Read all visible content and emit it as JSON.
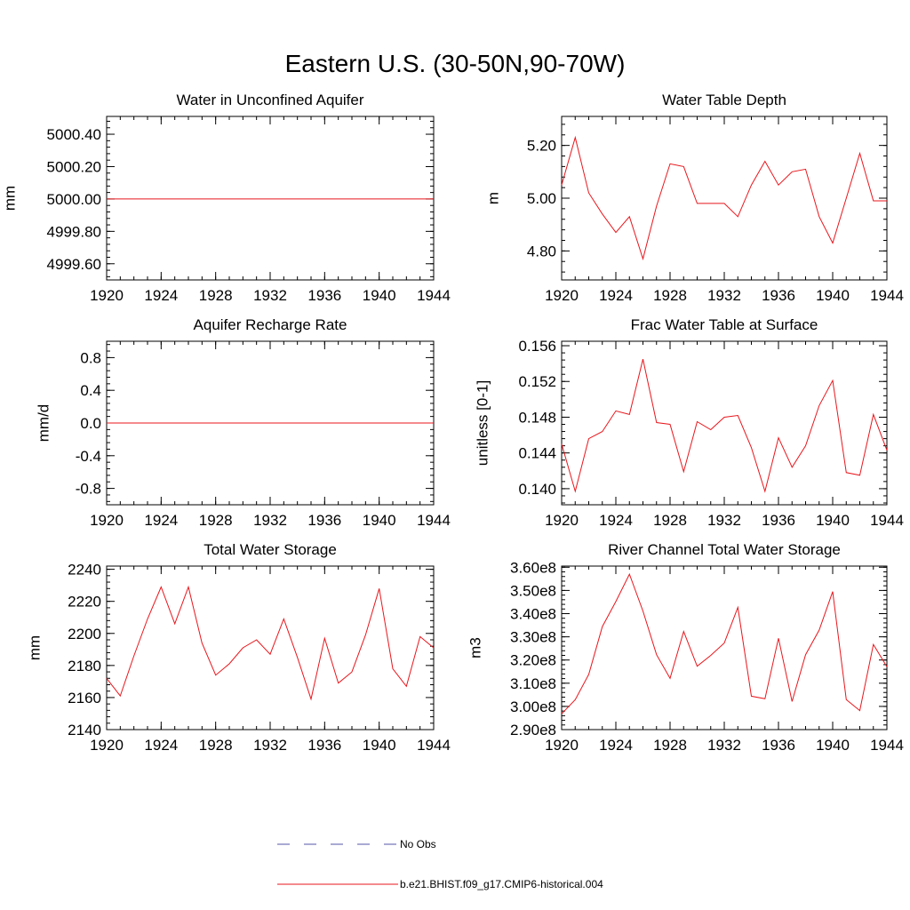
{
  "title": "Eastern U.S. (30-50N,90-70W)",
  "colors": {
    "model_line": "#e8161c",
    "obs_line": "#5555aa",
    "axis": "#000000"
  },
  "legend": {
    "obs_label": "No Obs",
    "model_label": "b.e21.BHIST.f09_g17.CMIP6-historical.004"
  },
  "chart_data": [
    {
      "type": "line",
      "title": "Water in Unconfined Aquifer",
      "ylabel": "mm",
      "xlabel": "",
      "xlim": [
        1920,
        1944
      ],
      "ylim": [
        4999.5,
        5000.51
      ],
      "x_ticks": [
        1920,
        1924,
        1928,
        1932,
        1936,
        1940,
        1944
      ],
      "y_ticks": [
        4999.6,
        4999.8,
        5000.0,
        5000.2,
        5000.4
      ],
      "y_tick_labels": [
        "4999.60",
        "4999.80",
        "5000.00",
        "5000.20",
        "5000.40"
      ],
      "grid": false,
      "series": [
        {
          "name": "b.e21.BHIST.f09_g17.CMIP6-historical.004",
          "x": [
            1920,
            1921,
            1922,
            1923,
            1924,
            1925,
            1926,
            1927,
            1928,
            1929,
            1930,
            1931,
            1932,
            1933,
            1934,
            1935,
            1936,
            1937,
            1938,
            1939,
            1940,
            1941,
            1942,
            1943,
            1944
          ],
          "values": [
            5000,
            5000,
            5000,
            5000,
            5000,
            5000,
            5000,
            5000,
            5000,
            5000,
            5000,
            5000,
            5000,
            5000,
            5000,
            5000,
            5000,
            5000,
            5000,
            5000,
            5000,
            5000,
            5000,
            5000,
            5000
          ]
        }
      ]
    },
    {
      "type": "line",
      "title": "Water Table Depth",
      "ylabel": "m",
      "xlabel": "",
      "xlim": [
        1920,
        1944
      ],
      "ylim": [
        4.69,
        5.31
      ],
      "x_ticks": [
        1920,
        1924,
        1928,
        1932,
        1936,
        1940,
        1944
      ],
      "y_ticks": [
        4.8,
        5.0,
        5.2
      ],
      "y_tick_labels": [
        "4.80",
        "5.00",
        "5.20"
      ],
      "grid": false,
      "series": [
        {
          "name": "b.e21.BHIST.f09_g17.CMIP6-historical.004",
          "x": [
            1920,
            1921,
            1922,
            1923,
            1924,
            1925,
            1926,
            1927,
            1928,
            1929,
            1930,
            1931,
            1932,
            1933,
            1934,
            1935,
            1936,
            1937,
            1938,
            1939,
            1940,
            1941,
            1942,
            1943,
            1944
          ],
          "values": [
            5.05,
            5.23,
            5.02,
            4.94,
            4.87,
            4.93,
            4.77,
            4.97,
            5.13,
            5.12,
            4.98,
            4.98,
            4.98,
            4.93,
            5.05,
            5.14,
            5.05,
            5.1,
            5.11,
            4.93,
            4.83,
            5.0,
            5.17,
            4.99,
            4.99
          ]
        }
      ]
    },
    {
      "type": "line",
      "title": "Aquifer Recharge Rate",
      "ylabel": "mm/d",
      "xlabel": "",
      "xlim": [
        1920,
        1944
      ],
      "ylim": [
        -1.0,
        1.0
      ],
      "x_ticks": [
        1920,
        1924,
        1928,
        1932,
        1936,
        1940,
        1944
      ],
      "y_ticks": [
        -0.8,
        -0.4,
        0.0,
        0.4,
        0.8
      ],
      "y_tick_labels": [
        "-0.8",
        "-0.4",
        "0.0",
        "0.4",
        "0.8"
      ],
      "grid": false,
      "series": [
        {
          "name": "b.e21.BHIST.f09_g17.CMIP6-historical.004",
          "x": [
            1920,
            1921,
            1922,
            1923,
            1924,
            1925,
            1926,
            1927,
            1928,
            1929,
            1930,
            1931,
            1932,
            1933,
            1934,
            1935,
            1936,
            1937,
            1938,
            1939,
            1940,
            1941,
            1942,
            1943,
            1944
          ],
          "values": [
            0,
            0,
            0,
            0,
            0,
            0,
            0,
            0,
            0,
            0,
            0,
            0,
            0,
            0,
            0,
            0,
            0,
            0,
            0,
            0,
            0,
            0,
            0,
            0,
            0
          ]
        }
      ]
    },
    {
      "type": "line",
      "title": "Frac Water Table at Surface",
      "ylabel": "unitless [0-1]",
      "xlabel": "",
      "xlim": [
        1920,
        1944
      ],
      "ylim": [
        0.1382,
        0.1565
      ],
      "x_ticks": [
        1920,
        1924,
        1928,
        1932,
        1936,
        1940,
        1944
      ],
      "y_ticks": [
        0.14,
        0.144,
        0.148,
        0.152,
        0.156
      ],
      "y_tick_labels": [
        "0.140",
        "0.144",
        "0.148",
        "0.152",
        "0.156"
      ],
      "grid": false,
      "series": [
        {
          "name": "b.e21.BHIST.f09_g17.CMIP6-historical.004",
          "x": [
            1920,
            1921,
            1922,
            1923,
            1924,
            1925,
            1926,
            1927,
            1928,
            1929,
            1930,
            1931,
            1932,
            1933,
            1934,
            1935,
            1936,
            1937,
            1938,
            1939,
            1940,
            1941,
            1942,
            1943,
            1944
          ],
          "values": [
            0.145,
            0.1397,
            0.1456,
            0.1464,
            0.1487,
            0.1483,
            0.1545,
            0.1474,
            0.1472,
            0.1419,
            0.1475,
            0.1466,
            0.148,
            0.1482,
            0.1446,
            0.1397,
            0.1457,
            0.1424,
            0.1448,
            0.1493,
            0.1521,
            0.1418,
            0.1415,
            0.1483,
            0.1443
          ]
        }
      ]
    },
    {
      "type": "line",
      "title": "Total Water Storage",
      "ylabel": "mm",
      "xlabel": "",
      "xlim": [
        1920,
        1944
      ],
      "ylim": [
        2140,
        2242
      ],
      "x_ticks": [
        1920,
        1924,
        1928,
        1932,
        1936,
        1940,
        1944
      ],
      "y_ticks": [
        2140,
        2160,
        2180,
        2200,
        2220,
        2240
      ],
      "y_tick_labels": [
        "2140",
        "2160",
        "2180",
        "2200",
        "2220",
        "2240"
      ],
      "grid": false,
      "series": [
        {
          "name": "b.e21.BHIST.f09_g17.CMIP6-historical.004",
          "x": [
            1920,
            1921,
            1922,
            1923,
            1924,
            1925,
            1926,
            1927,
            1928,
            1929,
            1930,
            1931,
            1932,
            1933,
            1934,
            1935,
            1936,
            1937,
            1938,
            1939,
            1940,
            1941,
            1942,
            1943,
            1944
          ],
          "values": [
            2172,
            2161,
            2186,
            2209,
            2229,
            2206,
            2229,
            2194,
            2174,
            2181,
            2191,
            2196,
            2187,
            2209,
            2185,
            2159,
            2197,
            2169,
            2176,
            2199,
            2228,
            2178,
            2167,
            2198,
            2191
          ]
        }
      ]
    },
    {
      "type": "line",
      "title": "River Channel Total Water Storage",
      "ylabel": "m3",
      "xlabel": "",
      "xlim": [
        1920,
        1944
      ],
      "ylim": [
        290000000,
        360500000
      ],
      "x_ticks": [
        1920,
        1924,
        1928,
        1932,
        1936,
        1940,
        1944
      ],
      "y_ticks": [
        290000000,
        300000000,
        310000000,
        320000000,
        330000000,
        340000000,
        350000000,
        360000000
      ],
      "y_tick_labels": [
        "2.90e8",
        "3.00e8",
        "3.10e8",
        "3.20e8",
        "3.30e8",
        "3.40e8",
        "3.50e8",
        "3.60e8"
      ],
      "grid": false,
      "series": [
        {
          "name": "b.e21.BHIST.f09_g17.CMIP6-historical.004",
          "x": [
            1920,
            1921,
            1922,
            1923,
            1924,
            1925,
            1926,
            1927,
            1928,
            1929,
            1930,
            1931,
            1932,
            1933,
            1934,
            1935,
            1936,
            1937,
            1938,
            1939,
            1940,
            1941,
            1942,
            1943,
            1944
          ],
          "values": [
            296800000,
            302900000,
            313800000,
            334400000,
            345200000,
            357000000,
            341100000,
            322300000,
            312100000,
            332300000,
            317300000,
            322000000,
            327300000,
            342700000,
            304400000,
            303300000,
            329400000,
            302100000,
            322300000,
            332900000,
            349500000,
            302900000,
            298200000,
            326700000,
            317100000
          ]
        }
      ]
    }
  ]
}
